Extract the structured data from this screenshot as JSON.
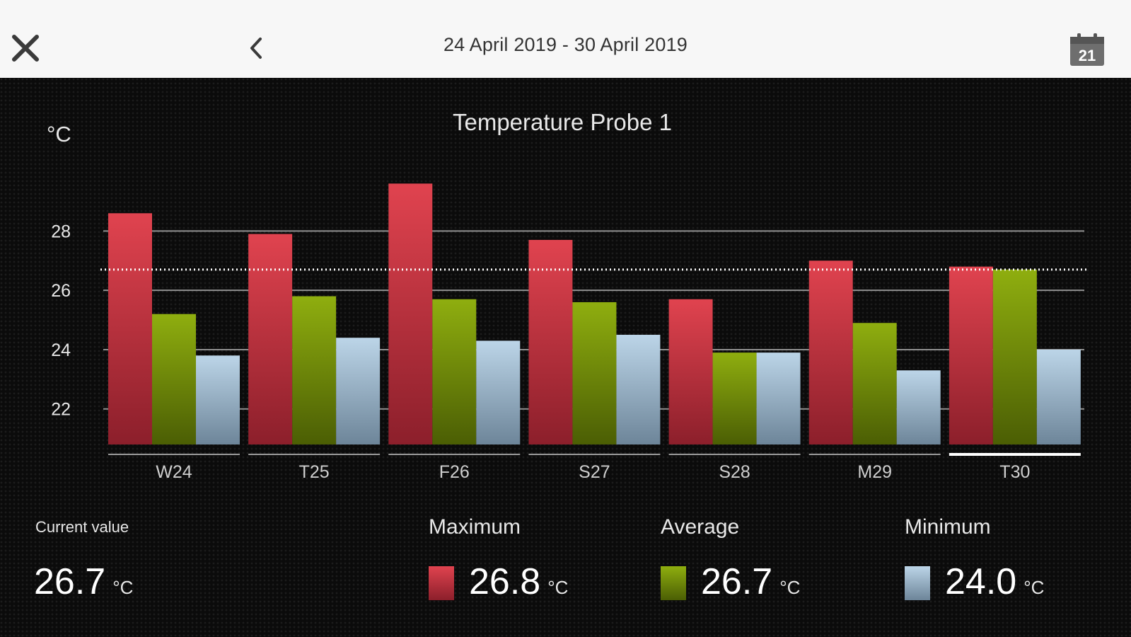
{
  "header": {
    "date_range": "24 April 2019 - 30 April 2019",
    "calendar_day": "21"
  },
  "chart_data": {
    "type": "bar",
    "title": "Temperature Probe 1",
    "ylabel": "°C",
    "yticks": [
      "22",
      "24",
      "26",
      "28"
    ],
    "ylim": [
      20.8,
      29.8
    ],
    "grid": true,
    "reference_line": 26.7,
    "categories": [
      "W24",
      "T25",
      "F26",
      "S27",
      "S28",
      "M29",
      "T30"
    ],
    "selected_category": "T30",
    "series": [
      {
        "key": "maximum",
        "values": [
          28.6,
          27.9,
          29.6,
          27.7,
          25.7,
          27.0,
          26.8
        ],
        "color": "#d23a48"
      },
      {
        "key": "average",
        "values": [
          25.2,
          25.8,
          25.7,
          25.6,
          23.9,
          24.9,
          26.7
        ],
        "color": "#7f9b0c"
      },
      {
        "key": "minimum",
        "values": [
          23.8,
          24.4,
          24.3,
          24.5,
          23.9,
          23.3,
          24.0
        ],
        "color": "#a9c3d8"
      }
    ]
  },
  "stats": {
    "current": {
      "label": "Current value",
      "value": "26.7",
      "unit": "°C"
    },
    "maximum": {
      "label": "Maximum",
      "value": "26.8",
      "unit": "°C"
    },
    "average": {
      "label": "Average",
      "value": "26.7",
      "unit": "°C"
    },
    "minimum": {
      "label": "Minimum",
      "value": "24.0",
      "unit": "°C"
    }
  },
  "colors": {
    "maximum": "#d23a48",
    "average": "#7f9b0c",
    "minimum": "#a9c3d8",
    "grid": "#bdbdbd",
    "text": "#e8e8e8"
  }
}
